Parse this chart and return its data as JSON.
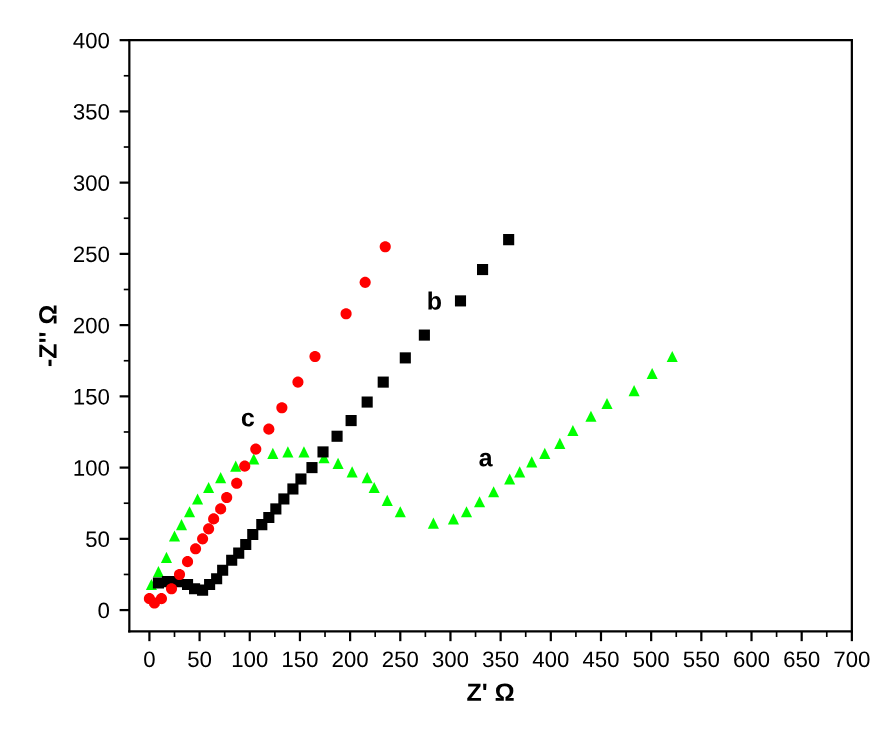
{
  "chart_data": {
    "type": "scatter",
    "xlabel": "Z' Ω",
    "ylabel": "-Z'' Ω",
    "xlim": [
      -20,
      700
    ],
    "ylim": [
      -15,
      400
    ],
    "xticks": [
      0,
      50,
      100,
      150,
      200,
      250,
      300,
      350,
      400,
      450,
      500,
      550,
      600,
      650,
      700
    ],
    "yticks": [
      0,
      50,
      100,
      150,
      200,
      250,
      300,
      350,
      400
    ],
    "grid": false,
    "legend": false,
    "series": [
      {
        "name": "a",
        "color": "#00ff00",
        "marker": "triangle",
        "x": [
          2,
          9,
          17,
          25,
          32,
          40,
          48,
          59,
          71,
          86,
          104,
          123,
          138,
          154,
          174,
          188,
          202,
          217,
          224,
          237,
          250,
          283,
          303,
          316,
          329,
          343,
          359,
          369,
          381,
          394,
          409,
          422,
          440,
          456,
          483,
          501,
          521
        ],
        "values": [
          18,
          27,
          37,
          52,
          60,
          69,
          78,
          86,
          93,
          101,
          106,
          110,
          111,
          111,
          107,
          103,
          97,
          93,
          86,
          77,
          69,
          61,
          64,
          69,
          76,
          83,
          92,
          97,
          104,
          110,
          117,
          126,
          136,
          145,
          154,
          166,
          178
        ]
      },
      {
        "name": "b",
        "color": "#000000",
        "marker": "square",
        "x": [
          9,
          18,
          28,
          38,
          45,
          53,
          60,
          67,
          73,
          82,
          89,
          96,
          103,
          112,
          119,
          126,
          134,
          143,
          151,
          162,
          173,
          187,
          201,
          217,
          233,
          255,
          274,
          310,
          332,
          358
        ],
        "values": [
          19,
          20,
          20,
          18,
          15,
          14,
          18,
          22,
          28,
          35,
          40,
          46,
          53,
          60,
          65,
          71,
          78,
          85,
          92,
          100,
          111,
          122,
          133,
          146,
          160,
          177,
          193,
          217,
          239,
          260
        ]
      },
      {
        "name": "c",
        "color": "#ff0000",
        "marker": "circle",
        "x": [
          0,
          5,
          12,
          22,
          30,
          38,
          46,
          53,
          59,
          64,
          71,
          77,
          87,
          95,
          106,
          119,
          132,
          148,
          165,
          196,
          215,
          235
        ],
        "values": [
          8,
          5,
          8,
          15,
          25,
          34,
          43,
          50,
          57,
          64,
          71,
          79,
          89,
          101,
          113,
          127,
          142,
          160,
          178,
          208,
          230,
          255
        ]
      }
    ]
  }
}
